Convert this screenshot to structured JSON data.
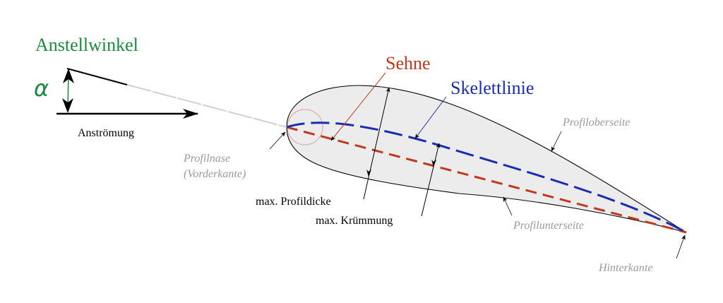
{
  "labels": {
    "angle_title": "Anstellwinkel",
    "alpha": "α",
    "inflow": "Anströmung",
    "chord": "Sehne",
    "camber_line": "Skelettlinie",
    "upper_surface": "Profiloberseite",
    "leading_edge_1": "Profilnase",
    "leading_edge_2": "(Vorderkante)",
    "max_thickness": "max. Profildicke",
    "max_camber": "max. Krümmung",
    "lower_surface": "Profilunterseite",
    "trailing_edge": "Hinterkante"
  },
  "colors": {
    "angle": "#1a8a3e",
    "chord": "#c0391b",
    "camber_line": "#1a2fb0",
    "annotation_gray": "#999999",
    "airfoil_fill": "#ececec"
  }
}
